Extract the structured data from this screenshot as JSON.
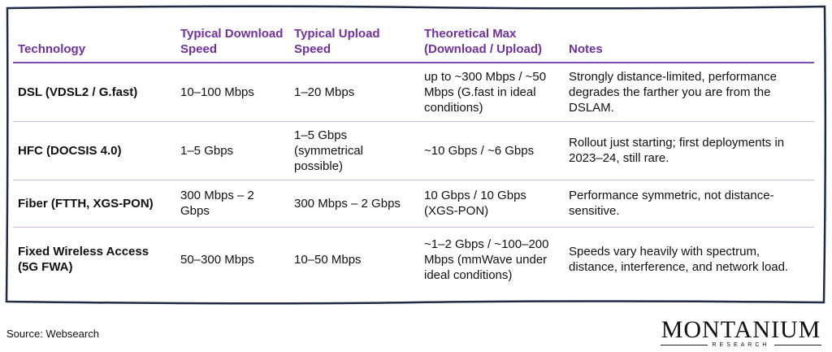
{
  "table": {
    "header": [
      "Technology",
      "Typical Download Speed",
      "Typical Upload Speed",
      "Theoretical Max (Download / Upload)",
      "Notes"
    ],
    "rows": [
      [
        "DSL (VDSL2 / G.fast)",
        "10–100 Mbps",
        "1–20 Mbps",
        "up to ~300 Mbps / ~50 Mbps (G.fast in ideal conditions)",
        "Strongly distance-limited, performance degrades the farther you are from the DSLAM."
      ],
      [
        "HFC (DOCSIS 4.0)",
        "1–5 Gbps",
        "1–5 Gbps (symmetrical possible)",
        "~10 Gbps / ~6 Gbps",
        "Rollout just starting; first deployments in 2023–24, still rare."
      ],
      [
        "Fiber (FTTH, XGS-PON)",
        "300 Mbps – 2 Gbps",
        "300 Mbps – 2 Gbps",
        "10 Gbps / 10 Gbps (XGS-PON)",
        "Performance symmetric, not distance-sensitive."
      ],
      [
        "Fixed Wireless Access (5G FWA)",
        "50–300 Mbps",
        "10–50 Mbps",
        "~1–2 Gbps / ~100–200 Mbps (mmWave under ideal conditions)",
        "Speeds vary heavily with spectrum, distance, interference, and network load."
      ]
    ]
  },
  "source": "Source: Websearch",
  "logo": {
    "name": "MONTANIUM",
    "sub": "RESEARCH"
  }
}
